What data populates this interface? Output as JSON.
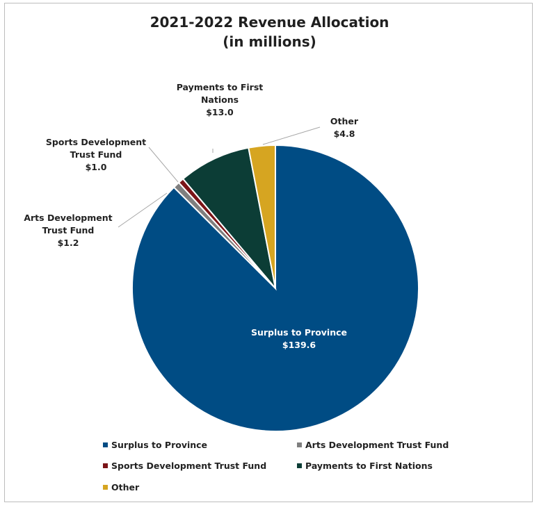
{
  "chart_data": {
    "type": "pie",
    "title": "2021-2022 Revenue Allocation",
    "subtitle": "(in millions)",
    "legend_position": "bottom",
    "slices": [
      {
        "name": "Surplus to Province",
        "label_lines": [
          "Surplus to Province"
        ],
        "value": 139.6,
        "value_label": "$139.6",
        "color": "#004c84"
      },
      {
        "name": "Arts Development Trust Fund",
        "label_lines": [
          "Arts Development",
          "Trust Fund"
        ],
        "value": 1.2,
        "value_label": "$1.2",
        "color": "#7f7f7f"
      },
      {
        "name": "Sports Development Trust Fund",
        "label_lines": [
          "Sports Development",
          "Trust Fund"
        ],
        "value": 1.0,
        "value_label": "$1.0",
        "color": "#7b1418"
      },
      {
        "name": "Payments to First Nations",
        "label_lines": [
          "Payments to First",
          "Nations"
        ],
        "value": 13.0,
        "value_label": "$13.0",
        "color": "#0c3d36"
      },
      {
        "name": "Other",
        "label_lines": [
          "Other"
        ],
        "value": 4.8,
        "value_label": "$4.8",
        "color": "#d6a521"
      }
    ]
  }
}
